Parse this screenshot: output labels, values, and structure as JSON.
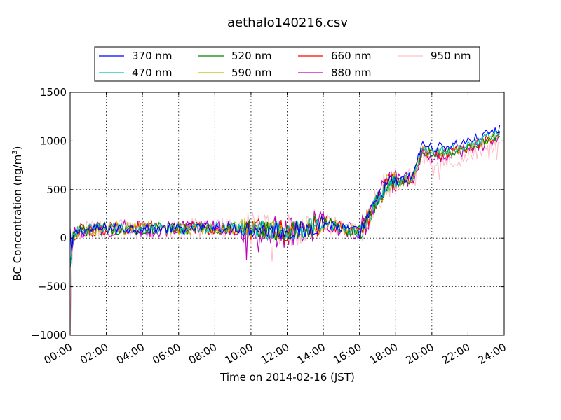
{
  "chart_data": {
    "type": "line",
    "title": "aethalo140216.csv",
    "xlabel": "Time on 2014-02-16 (JST)",
    "ylabel_main": "BC Concentration (ng/m",
    "ylabel_sup": "3",
    "ylabel_end": ")",
    "xlim": [
      0,
      24
    ],
    "ylim": [
      -1000,
      1500
    ],
    "x_ticks": [
      0,
      2,
      4,
      6,
      8,
      10,
      12,
      14,
      16,
      18,
      20,
      22,
      24
    ],
    "x_tick_labels": [
      "00:00",
      "02:00",
      "04:00",
      "06:00",
      "08:00",
      "10:00",
      "12:00",
      "14:00",
      "16:00",
      "18:00",
      "20:00",
      "22:00",
      "24:00"
    ],
    "y_ticks": [
      -1000,
      -500,
      0,
      500,
      1000,
      1500
    ],
    "y_tick_labels": [
      "−1000",
      "−500",
      "0",
      "500",
      "1000",
      "1500"
    ],
    "grid": true,
    "legend_position": "top",
    "series": [
      {
        "name": "370 nm",
        "color": "#0000ff"
      },
      {
        "name": "470 nm",
        "color": "#00bfbf"
      },
      {
        "name": "520 nm",
        "color": "#008000"
      },
      {
        "name": "590 nm",
        "color": "#bfbf00"
      },
      {
        "name": "660 nm",
        "color": "#ff0000"
      },
      {
        "name": "880 nm",
        "color": "#bf00bf"
      },
      {
        "name": "950 nm",
        "color": "#ffc0cb"
      }
    ],
    "trend": {
      "x": [
        0,
        0.2,
        0.5,
        2,
        4,
        6,
        8,
        10,
        12,
        13,
        14,
        15,
        16,
        16.5,
        17,
        17.5,
        18,
        18.5,
        19,
        19.5,
        20,
        21,
        22,
        23,
        23.7
      ],
      "y": [
        -100,
        30,
        80,
        100,
        100,
        100,
        110,
        100,
        70,
        80,
        170,
        100,
        60,
        220,
        400,
        550,
        580,
        600,
        640,
        900,
        860,
        880,
        930,
        1000,
        1050
      ]
    }
  }
}
